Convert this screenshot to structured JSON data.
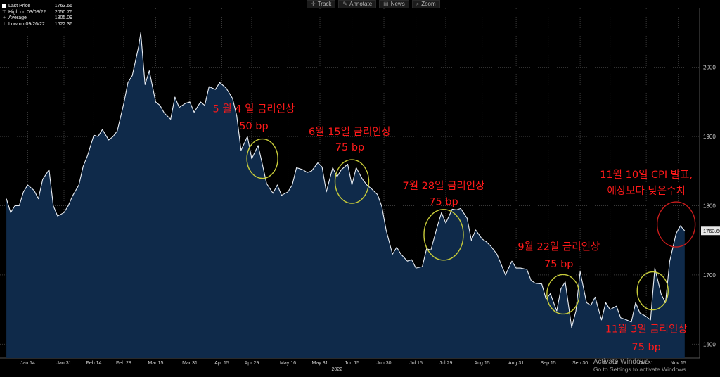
{
  "toolbar": {
    "track": "Track",
    "annotate": "Annotate",
    "news": "News",
    "zoom": "Zoom"
  },
  "legend": {
    "items": [
      {
        "label": "Last Price",
        "value": "1763.66"
      },
      {
        "label": "High on 03/08/22",
        "value": "2050.76"
      },
      {
        "label": "Average",
        "value": "1805.09"
      },
      {
        "label": "Low on 09/26/22",
        "value": "1622.36"
      }
    ]
  },
  "watermark": {
    "title": "Activate Windows",
    "subtitle": "Go to Settings to activate Windows."
  },
  "colors": {
    "line": "#e9eef5",
    "area": "#0f2a4a",
    "background": "#000000",
    "annotation": "#ff1a1a",
    "circle_yellow": "#c8cc3a",
    "circle_red": "#c81c1c",
    "grid": "#3a3a3a",
    "last_price_box": "#e8e8e8"
  },
  "chart_data": {
    "type": "area",
    "title": "",
    "xlabel": "",
    "ylabel": "",
    "year_label": "2022",
    "x_ticks": [
      "Jan 14",
      "Jan 31",
      "Feb 14",
      "Feb 28",
      "Mar 15",
      "Mar 31",
      "Apr 15",
      "Apr 29",
      "May 16",
      "May 31",
      "Jun 15",
      "Jun 30",
      "Jul 15",
      "Jul 29",
      "Aug 15",
      "Aug 31",
      "Sep 15",
      "Sep 30",
      "Oct 14",
      "Oct 31",
      "Nov 15"
    ],
    "y_ticks": [
      1600,
      1700,
      1800,
      1900,
      2000
    ],
    "ylim": [
      1580,
      2085
    ],
    "last_price_label": "1763.66",
    "grid": true,
    "series": [
      {
        "name": "Last Price",
        "x": [
          "2022-01-04",
          "2022-01-06",
          "2022-01-08",
          "2022-01-10",
          "2022-01-12",
          "2022-01-14",
          "2022-01-17",
          "2022-01-19",
          "2022-01-21",
          "2022-01-24",
          "2022-01-26",
          "2022-01-28",
          "2022-01-31",
          "2022-02-02",
          "2022-02-04",
          "2022-02-07",
          "2022-02-09",
          "2022-02-11",
          "2022-02-14",
          "2022-02-16",
          "2022-02-18",
          "2022-02-21",
          "2022-02-23",
          "2022-02-25",
          "2022-02-28",
          "2022-03-02",
          "2022-03-04",
          "2022-03-07",
          "2022-03-08",
          "2022-03-10",
          "2022-03-12",
          "2022-03-15",
          "2022-03-17",
          "2022-03-19",
          "2022-03-22",
          "2022-03-24",
          "2022-03-26",
          "2022-03-29",
          "2022-03-31",
          "2022-04-02",
          "2022-04-05",
          "2022-04-07",
          "2022-04-09",
          "2022-04-12",
          "2022-04-14",
          "2022-04-17",
          "2022-04-20",
          "2022-04-22",
          "2022-04-24",
          "2022-04-27",
          "2022-04-29",
          "2022-05-02",
          "2022-05-04",
          "2022-05-06",
          "2022-05-09",
          "2022-05-11",
          "2022-05-13",
          "2022-05-16",
          "2022-05-18",
          "2022-05-20",
          "2022-05-23",
          "2022-05-25",
          "2022-05-27",
          "2022-05-30",
          "2022-06-01",
          "2022-06-03",
          "2022-06-06",
          "2022-06-08",
          "2022-06-10",
          "2022-06-13",
          "2022-06-15",
          "2022-06-17",
          "2022-06-20",
          "2022-06-22",
          "2022-06-24",
          "2022-06-27",
          "2022-06-29",
          "2022-07-01",
          "2022-07-04",
          "2022-07-06",
          "2022-07-08",
          "2022-07-11",
          "2022-07-13",
          "2022-07-15",
          "2022-07-18",
          "2022-07-20",
          "2022-07-22",
          "2022-07-25",
          "2022-07-27",
          "2022-07-29",
          "2022-08-01",
          "2022-08-03",
          "2022-08-05",
          "2022-08-08",
          "2022-08-10",
          "2022-08-12",
          "2022-08-15",
          "2022-08-17",
          "2022-08-19",
          "2022-08-22",
          "2022-08-24",
          "2022-08-26",
          "2022-08-29",
          "2022-08-31",
          "2022-09-02",
          "2022-09-05",
          "2022-09-07",
          "2022-09-09",
          "2022-09-12",
          "2022-09-14",
          "2022-09-16",
          "2022-09-19",
          "2022-09-21",
          "2022-09-23",
          "2022-09-26",
          "2022-09-28",
          "2022-09-30",
          "2022-10-03",
          "2022-10-05",
          "2022-10-07",
          "2022-10-10",
          "2022-10-12",
          "2022-10-14",
          "2022-10-17",
          "2022-10-19",
          "2022-10-21",
          "2022-10-24",
          "2022-10-26",
          "2022-10-28",
          "2022-10-31",
          "2022-11-02",
          "2022-11-04",
          "2022-11-07",
          "2022-11-09",
          "2022-11-11",
          "2022-11-14",
          "2022-11-16",
          "2022-11-18"
        ],
        "values": [
          1810,
          1790,
          1800,
          1800,
          1820,
          1830,
          1822,
          1810,
          1838,
          1852,
          1800,
          1785,
          1790,
          1800,
          1814,
          1830,
          1857,
          1872,
          1902,
          1900,
          1910,
          1895,
          1900,
          1908,
          1947,
          1978,
          1988,
          2030,
          2050,
          1975,
          1995,
          1950,
          1945,
          1934,
          1925,
          1957,
          1942,
          1948,
          1950,
          1935,
          1950,
          1945,
          1972,
          1968,
          1978,
          1970,
          1955,
          1930,
          1880,
          1900,
          1868,
          1887,
          1860,
          1832,
          1818,
          1830,
          1815,
          1820,
          1830,
          1855,
          1852,
          1848,
          1850,
          1862,
          1856,
          1820,
          1855,
          1842,
          1852,
          1860,
          1830,
          1855,
          1838,
          1830,
          1825,
          1816,
          1799,
          1765,
          1730,
          1740,
          1730,
          1720,
          1722,
          1710,
          1712,
          1738,
          1736,
          1770,
          1790,
          1775,
          1795,
          1794,
          1796,
          1782,
          1750,
          1765,
          1752,
          1748,
          1742,
          1730,
          1715,
          1700,
          1720,
          1710,
          1710,
          1708,
          1692,
          1688,
          1687,
          1665,
          1673,
          1648,
          1680,
          1690,
          1624,
          1648,
          1705,
          1660,
          1656,
          1668,
          1635,
          1660,
          1650,
          1655,
          1638,
          1636,
          1632,
          1660,
          1645,
          1640,
          1635,
          1710,
          1672,
          1660,
          1720,
          1760,
          1771,
          1763.66
        ]
      }
    ],
    "annotations": [
      {
        "line1": "5 월 4 일 금리인상",
        "line2": "50 bp"
      },
      {
        "line1": "6월 15일 금리인상",
        "line2": "75 bp"
      },
      {
        "line1": "7월 28일 금리인상",
        "line2": "75 bp"
      },
      {
        "line1": "9월 22일 금리인상",
        "line2": "75  bp"
      },
      {
        "line1": "11월 3일 금리인상",
        "line2": "75 bp"
      },
      {
        "line1": "11월 10일 CPI 발표,",
        "line2": "예상보다 낮은수치"
      }
    ]
  }
}
